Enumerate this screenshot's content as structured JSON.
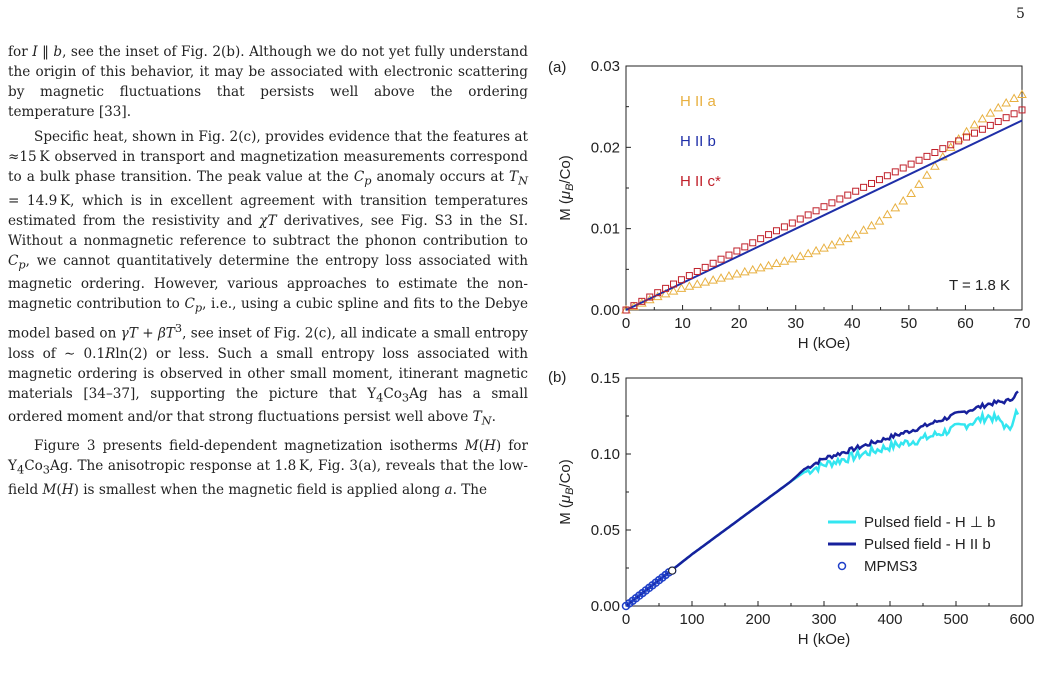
{
  "page_number": "5",
  "body_paragraphs": [
    "for I ‖ b, see the inset of Fig. 2(b). Although we do not yet fully understand the origin of this behavior, it may be associated with electronic scattering by magnetic fluctuations that persists well above the ordering temperature [33].",
    "Specific heat, shown in Fig. 2(c), provides evidence that the features at ≈15 K observed in transport and magnetization measurements correspond to a bulk phase transition. The peak value at the Cp anomaly occurs at TN = 14.9 K, which is in excellent agreement with transition temperatures estimated from the resistivity and χT derivatives, see Fig. S3 in the SI. Without a nonmagnetic reference to subtract the phonon contribution to Cp, we cannot quantitatively determine the entropy loss associated with magnetic ordering. However, various approaches to estimate the non-magnetic contribution to Cp, i.e., using a cubic spline and fits to the Debye model based on γT + βT³, see inset of Fig. 2(c), all indicate a small entropy loss of ∼ 0.1Rln(2) or less. Such a small entropy loss associated with magnetic ordering is observed in other small moment, itinerant magnetic materials [34–37], supporting the picture that Y4Co3Ag has a small ordered moment and/or that strong fluctuations persist well above TN.",
    "Figure 3 presents field-dependent magnetization isotherms M(H) for Y4Co3Ag. The anisotropic response at 1.8 K, Fig. 3(a), reveals that the low-field M(H) is smallest when the magnetic field is applied along a. The"
  ],
  "chart_data": [
    {
      "type": "scatter",
      "panel_label": "(a)",
      "xlabel": "H (kOe)",
      "ylabel": "M (μB/Co)",
      "xlim": [
        0,
        70
      ],
      "ylim": [
        0,
        0.03
      ],
      "xticks": [
        "0",
        "10",
        "20",
        "30",
        "40",
        "50",
        "60",
        "70"
      ],
      "yticks": [
        "0.00",
        "0.01",
        "0.02",
        "0.03"
      ],
      "annotation": "T = 1.8 K",
      "legend_placement": "top-left",
      "series": [
        {
          "name": "H II a",
          "color": "#E8B040",
          "marker": "triangle",
          "x": [
            0,
            5,
            10,
            15,
            20,
            25,
            30,
            35,
            40,
            45,
            50,
            55,
            58,
            60,
            62,
            65,
            68,
            70
          ],
          "y": [
            0,
            0.0015,
            0.0027,
            0.0036,
            0.0045,
            0.0054,
            0.0064,
            0.0076,
            0.009,
            0.011,
            0.014,
            0.018,
            0.0205,
            0.0218,
            0.023,
            0.0245,
            0.0258,
            0.0265
          ]
        },
        {
          "name": "H II b",
          "color": "#1F2FA8",
          "marker": "line",
          "x": [
            0,
            70
          ],
          "y": [
            0,
            0.0233
          ]
        },
        {
          "name": "H II c*",
          "color": "#C0202A",
          "marker": "square",
          "x": [
            0,
            5,
            10,
            15,
            20,
            25,
            30,
            35,
            40,
            45,
            50,
            55,
            60,
            65,
            70
          ],
          "y": [
            0,
            0.0019,
            0.0038,
            0.0056,
            0.0074,
            0.0092,
            0.0109,
            0.0127,
            0.0144,
            0.0161,
            0.0178,
            0.0195,
            0.0212,
            0.0229,
            0.0246
          ]
        }
      ]
    },
    {
      "type": "line",
      "panel_label": "(b)",
      "xlabel": "H (kOe)",
      "ylabel": "M (μB/Co)",
      "xlim": [
        0,
        600
      ],
      "ylim": [
        0,
        0.15
      ],
      "xticks": [
        "0",
        "100",
        "200",
        "300",
        "400",
        "500",
        "600"
      ],
      "yticks": [
        "0.00",
        "0.05",
        "0.10",
        "0.15"
      ],
      "legend_placement": "bottom-right",
      "series": [
        {
          "name": "Pulsed field - H ⊥ b",
          "color": "#33E6F0",
          "x": [
            0,
            50,
            100,
            150,
            200,
            250,
            270,
            300,
            350,
            400,
            450,
            500,
            550,
            570,
            580,
            590,
            595
          ],
          "y": [
            0,
            0.017,
            0.034,
            0.05,
            0.066,
            0.082,
            0.088,
            0.093,
            0.099,
            0.105,
            0.11,
            0.117,
            0.125,
            0.121,
            0.115,
            0.128,
            0.124
          ]
        },
        {
          "name": "Pulsed field - H II b",
          "color": "#17209C",
          "x": [
            0,
            50,
            100,
            150,
            200,
            250,
            270,
            300,
            350,
            400,
            450,
            500,
            550,
            580,
            595
          ],
          "y": [
            0,
            0.017,
            0.034,
            0.05,
            0.066,
            0.082,
            0.09,
            0.097,
            0.104,
            0.111,
            0.118,
            0.126,
            0.133,
            0.135,
            0.141
          ]
        },
        {
          "name": "MPMS3",
          "color": "#1F3FC8",
          "marker": "open-circle",
          "x": [
            0,
            5,
            10,
            15,
            20,
            25,
            30,
            35,
            40,
            45,
            50,
            55,
            60,
            65,
            70
          ],
          "y": [
            0,
            0.0017,
            0.0034,
            0.0051,
            0.0068,
            0.0085,
            0.0102,
            0.0119,
            0.0136,
            0.0153,
            0.017,
            0.0187,
            0.0204,
            0.0221,
            0.0233
          ]
        }
      ]
    }
  ]
}
